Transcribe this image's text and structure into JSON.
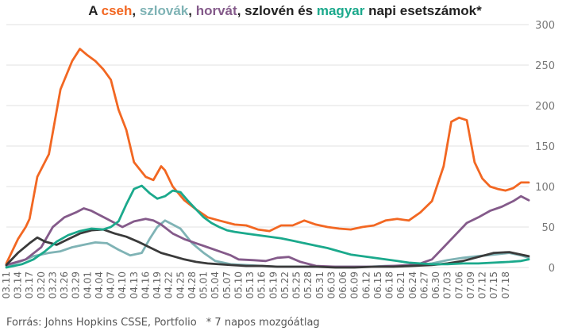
{
  "title_parts": [
    {
      "text": "A ",
      "color": "#222222"
    },
    {
      "text": "cseh",
      "color": "#F26722"
    },
    {
      "text": ", ",
      "color": "#222222"
    },
    {
      "text": "szlovák",
      "color": "#7FB3B5"
    },
    {
      "text": ", ",
      "color": "#222222"
    },
    {
      "text": "horvát",
      "color": "#845A8A"
    },
    {
      "text": ", szlovén és ",
      "color": "#222222"
    },
    {
      "text": "magyar",
      "color": "#1BA98C"
    },
    {
      "text": " napi esetszámok*",
      "color": "#222222"
    }
  ],
  "footer": {
    "source": "Forrás: Johns Hopkins CSSE, Portfolio",
    "note": "* 7 napos mozgóátlag"
  },
  "chart_data": {
    "type": "line",
    "title": "A cseh, szlovák, horvát, szlovén és magyar napi esetszámok*",
    "x_start": "03.11",
    "n_points": 130,
    "x_tick_labels": [
      "03.11",
      "03.14",
      "03.17",
      "03.20",
      "03.23",
      "03.26",
      "03.29",
      "04.01",
      "04.04",
      "04.07",
      "04.10",
      "04.13",
      "04.16",
      "04.19",
      "04.22",
      "04.25",
      "04.28",
      "05.01",
      "05.04",
      "05.07",
      "05.10",
      "05.13",
      "05.16",
      "05.19",
      "05.22",
      "05.25",
      "05.28",
      "05.31",
      "06.03",
      "06.06",
      "06.09",
      "06.12",
      "06.15",
      "06.18",
      "06.21",
      "06.24",
      "06.27",
      "06.30",
      "07.03",
      "07.06",
      "07.09",
      "07.12",
      "07.15",
      "07.18"
    ],
    "ylim": [
      0,
      300
    ],
    "y_ticks": [
      0,
      50,
      100,
      150,
      200,
      250,
      300
    ],
    "y_axis_position": "right",
    "grid": true,
    "series": [
      {
        "name": "cseh",
        "color": "#F26722",
        "points": [
          [
            0,
            5
          ],
          [
            3,
            35
          ],
          [
            5,
            50
          ],
          [
            6,
            60
          ],
          [
            8,
            112
          ],
          [
            11,
            140
          ],
          [
            14,
            220
          ],
          [
            17,
            255
          ],
          [
            19,
            270
          ],
          [
            21,
            262
          ],
          [
            23,
            255
          ],
          [
            25,
            245
          ],
          [
            27,
            232
          ],
          [
            29,
            195
          ],
          [
            31,
            170
          ],
          [
            33,
            130
          ],
          [
            36,
            112
          ],
          [
            38,
            108
          ],
          [
            40,
            125
          ],
          [
            41,
            120
          ],
          [
            43,
            100
          ],
          [
            46,
            83
          ],
          [
            49,
            72
          ],
          [
            52,
            62
          ],
          [
            55,
            58
          ],
          [
            59,
            53
          ],
          [
            62,
            52
          ],
          [
            65,
            47
          ],
          [
            68,
            45
          ],
          [
            71,
            52
          ],
          [
            74,
            52
          ],
          [
            77,
            58
          ],
          [
            80,
            53
          ],
          [
            83,
            50
          ],
          [
            86,
            48
          ],
          [
            89,
            47
          ],
          [
            92,
            50
          ],
          [
            95,
            52
          ],
          [
            98,
            58
          ],
          [
            101,
            60
          ],
          [
            104,
            58
          ],
          [
            107,
            68
          ],
          [
            110,
            82
          ],
          [
            113,
            125
          ],
          [
            115,
            180
          ],
          [
            117,
            185
          ],
          [
            119,
            182
          ],
          [
            121,
            130
          ],
          [
            123,
            110
          ],
          [
            125,
            100
          ],
          [
            127,
            97
          ],
          [
            129,
            95
          ],
          [
            131,
            98
          ],
          [
            133,
            105
          ],
          [
            135,
            105
          ]
        ]
      },
      {
        "name": "szlovák",
        "color": "#7FB3B5",
        "points": [
          [
            0,
            2
          ],
          [
            4,
            8
          ],
          [
            7,
            14
          ],
          [
            11,
            18
          ],
          [
            14,
            20
          ],
          [
            17,
            25
          ],
          [
            20,
            28
          ],
          [
            23,
            31
          ],
          [
            26,
            30
          ],
          [
            29,
            22
          ],
          [
            32,
            15
          ],
          [
            35,
            18
          ],
          [
            37,
            35
          ],
          [
            39,
            50
          ],
          [
            41,
            58
          ],
          [
            43,
            53
          ],
          [
            45,
            48
          ],
          [
            48,
            30
          ],
          [
            51,
            18
          ],
          [
            54,
            8
          ],
          [
            58,
            4
          ],
          [
            62,
            3
          ],
          [
            66,
            2
          ],
          [
            70,
            1
          ],
          [
            74,
            1
          ],
          [
            78,
            1
          ],
          [
            82,
            1
          ],
          [
            86,
            1
          ],
          [
            90,
            1
          ],
          [
            94,
            1
          ],
          [
            98,
            2
          ],
          [
            102,
            2
          ],
          [
            106,
            3
          ],
          [
            110,
            5
          ],
          [
            114,
            9
          ],
          [
            118,
            12
          ],
          [
            122,
            14
          ],
          [
            126,
            16
          ],
          [
            130,
            18
          ],
          [
            133,
            15
          ],
          [
            135,
            12
          ]
        ]
      },
      {
        "name": "horvát",
        "color": "#845A8A",
        "points": [
          [
            0,
            3
          ],
          [
            5,
            10
          ],
          [
            9,
            25
          ],
          [
            12,
            50
          ],
          [
            15,
            62
          ],
          [
            18,
            68
          ],
          [
            20,
            73
          ],
          [
            22,
            70
          ],
          [
            24,
            65
          ],
          [
            26,
            60
          ],
          [
            28,
            55
          ],
          [
            30,
            50
          ],
          [
            33,
            57
          ],
          [
            36,
            60
          ],
          [
            38,
            58
          ],
          [
            40,
            53
          ],
          [
            43,
            42
          ],
          [
            46,
            35
          ],
          [
            49,
            30
          ],
          [
            52,
            25
          ],
          [
            55,
            20
          ],
          [
            58,
            15
          ],
          [
            60,
            10
          ],
          [
            64,
            9
          ],
          [
            67,
            8
          ],
          [
            70,
            12
          ],
          [
            73,
            13
          ],
          [
            76,
            7
          ],
          [
            80,
            2
          ],
          [
            85,
            1
          ],
          [
            90,
            1
          ],
          [
            95,
            1
          ],
          [
            100,
            2
          ],
          [
            104,
            3
          ],
          [
            107,
            5
          ],
          [
            110,
            10
          ],
          [
            113,
            25
          ],
          [
            116,
            40
          ],
          [
            119,
            55
          ],
          [
            122,
            62
          ],
          [
            125,
            70
          ],
          [
            128,
            75
          ],
          [
            131,
            82
          ],
          [
            133,
            88
          ],
          [
            135,
            83
          ]
        ]
      },
      {
        "name": "szlovén",
        "color": "#3A3A3A",
        "points": [
          [
            0,
            3
          ],
          [
            3,
            18
          ],
          [
            6,
            30
          ],
          [
            8,
            37
          ],
          [
            10,
            32
          ],
          [
            13,
            28
          ],
          [
            16,
            35
          ],
          [
            19,
            42
          ],
          [
            22,
            46
          ],
          [
            25,
            47
          ],
          [
            28,
            42
          ],
          [
            31,
            38
          ],
          [
            34,
            32
          ],
          [
            37,
            25
          ],
          [
            40,
            18
          ],
          [
            43,
            14
          ],
          [
            46,
            10
          ],
          [
            49,
            7
          ],
          [
            52,
            5
          ],
          [
            55,
            4
          ],
          [
            58,
            3
          ],
          [
            62,
            2
          ],
          [
            66,
            2
          ],
          [
            70,
            1
          ],
          [
            75,
            1
          ],
          [
            80,
            1
          ],
          [
            85,
            0
          ],
          [
            90,
            0
          ],
          [
            95,
            1
          ],
          [
            100,
            1
          ],
          [
            105,
            2
          ],
          [
            110,
            3
          ],
          [
            114,
            5
          ],
          [
            118,
            8
          ],
          [
            122,
            13
          ],
          [
            126,
            18
          ],
          [
            130,
            19
          ],
          [
            133,
            16
          ],
          [
            135,
            14
          ]
        ]
      },
      {
        "name": "magyar",
        "color": "#1BA98C",
        "points": [
          [
            0,
            0
          ],
          [
            4,
            4
          ],
          [
            7,
            10
          ],
          [
            10,
            20
          ],
          [
            13,
            32
          ],
          [
            16,
            40
          ],
          [
            19,
            45
          ],
          [
            22,
            48
          ],
          [
            25,
            47
          ],
          [
            27,
            50
          ],
          [
            29,
            57
          ],
          [
            31,
            78
          ],
          [
            33,
            97
          ],
          [
            35,
            101
          ],
          [
            37,
            92
          ],
          [
            39,
            85
          ],
          [
            41,
            88
          ],
          [
            43,
            95
          ],
          [
            45,
            93
          ],
          [
            47,
            82
          ],
          [
            49,
            72
          ],
          [
            51,
            62
          ],
          [
            53,
            55
          ],
          [
            55,
            50
          ],
          [
            57,
            46
          ],
          [
            59,
            44
          ],
          [
            62,
            42
          ],
          [
            65,
            40
          ],
          [
            68,
            38
          ],
          [
            71,
            36
          ],
          [
            74,
            33
          ],
          [
            77,
            30
          ],
          [
            80,
            27
          ],
          [
            83,
            24
          ],
          [
            86,
            20
          ],
          [
            89,
            16
          ],
          [
            92,
            14
          ],
          [
            95,
            12
          ],
          [
            98,
            10
          ],
          [
            101,
            8
          ],
          [
            104,
            6
          ],
          [
            107,
            5
          ],
          [
            110,
            4
          ],
          [
            114,
            4
          ],
          [
            118,
            5
          ],
          [
            122,
            5
          ],
          [
            126,
            6
          ],
          [
            130,
            7
          ],
          [
            133,
            8
          ],
          [
            135,
            10
          ]
        ]
      }
    ]
  }
}
